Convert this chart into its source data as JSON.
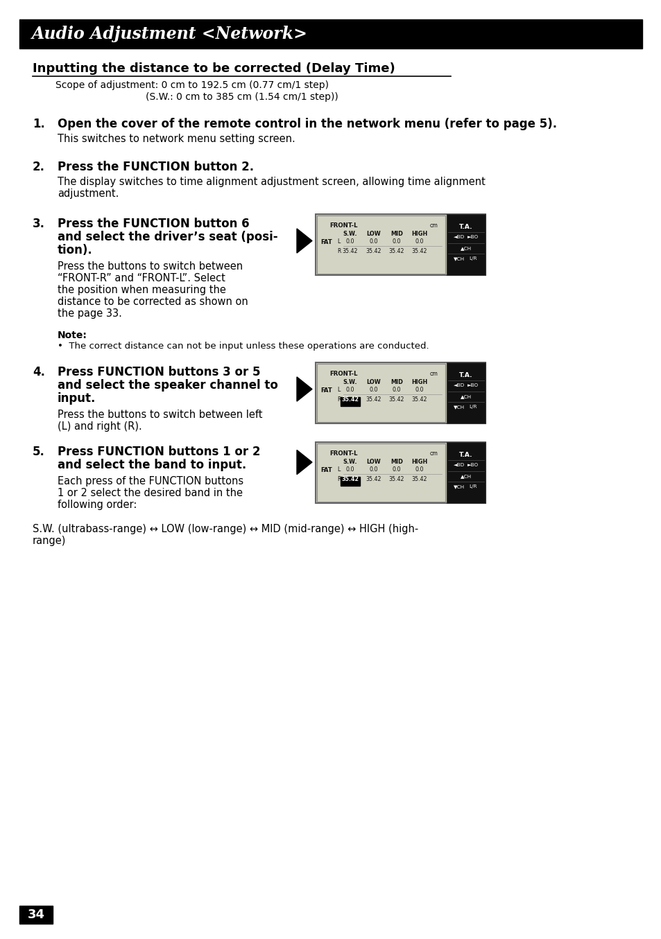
{
  "title": "Audio Adjustment <Network>",
  "title_bg": "#000000",
  "title_color": "#ffffff",
  "title_fontsize": 17,
  "page_bg": "#ffffff",
  "page_number": "34",
  "section_heading": "Inputting the distance to be corrected (Delay Time)",
  "scope_line1": "Scope of adjustment: 0 cm to 192.5 cm (0.77 cm/1 step)",
  "scope_line2": "(S.W.: 0 cm to 385 cm (1.54 cm/1 step))",
  "step1_bold": "Open the cover of the remote control in the network menu (refer to page 5).",
  "step1_body": "This switches to network menu setting screen.",
  "step2_bold": "Press the FUNCTION button 2.",
  "step2_body": "The display switches to time alignment adjustment screen, allowing time alignment\nadjustment.",
  "step3_bold_lines": [
    "Press the FUNCTION button 6",
    "and select the driver’s seat (posi-",
    "tion)."
  ],
  "step3_body_lines": [
    "Press the buttons to switch between",
    "“FRONT-R” and “FRONT-L”. Select",
    "the position when measuring the",
    "distance to be corrected as shown on",
    "the page 33."
  ],
  "note_title": "Note:",
  "note_body": "•  The correct distance can not be input unless these operations are conducted.",
  "step4_bold_lines": [
    "Press FUNCTION buttons 3 or 5",
    "and select the speaker channel to",
    "input."
  ],
  "step4_body_lines": [
    "Press the buttons to switch between left",
    "(L) and right (R)."
  ],
  "step5_bold_lines": [
    "Press FUNCTION buttons 1 or 2",
    "and select the band to input."
  ],
  "step5_body_lines": [
    "Each press of the FUNCTION buttons",
    "1 or 2 select the desired band in the",
    "following order:"
  ],
  "final_line1": "S.W. (ultrabass-range) ↔ LOW (low-range) ↔ MID (mid-range) ↔ HIGH (high-",
  "final_line2": "range)",
  "lcd_bg": "#c8c8b8",
  "lcd_disp_bg": "#d4d4c4",
  "lcd_right_bg": "#111111",
  "lcd_border": "#666666"
}
